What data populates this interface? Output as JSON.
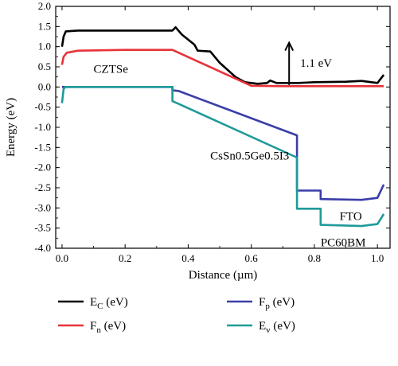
{
  "chart_data": {
    "type": "line",
    "xlabel": "Distance (µm)",
    "ylabel": "Energy (eV)",
    "xlim": [
      -0.02,
      1.04
    ],
    "ylim": [
      -4.0,
      2.0
    ],
    "xticks": [
      "0.0",
      "0.2",
      "0.4",
      "0.6",
      "0.8",
      "1.0"
    ],
    "xtick_values": [
      0.0,
      0.2,
      0.4,
      0.6,
      0.8,
      1.0
    ],
    "yticks": [
      "2.0",
      "1.5",
      "1.0",
      "0.5",
      "0.0",
      "-0.5",
      "-1.0",
      "-1.5",
      "-2.0",
      "-2.5",
      "-3.0",
      "-3.5",
      "-4.0"
    ],
    "ytick_values": [
      2.0,
      1.5,
      1.0,
      0.5,
      0.0,
      -0.5,
      -1.0,
      -1.5,
      -2.0,
      -2.5,
      -3.0,
      -3.5,
      -4.0
    ],
    "series": [
      {
        "name": "EC (eV)",
        "color": "#000000",
        "points": [
          [
            0.0,
            1.0
          ],
          [
            0.005,
            1.25
          ],
          [
            0.012,
            1.38
          ],
          [
            0.05,
            1.4
          ],
          [
            0.35,
            1.4
          ],
          [
            0.36,
            1.48
          ],
          [
            0.38,
            1.3
          ],
          [
            0.42,
            1.05
          ],
          [
            0.43,
            0.9
          ],
          [
            0.47,
            0.88
          ],
          [
            0.5,
            0.6
          ],
          [
            0.55,
            0.25
          ],
          [
            0.58,
            0.12
          ],
          [
            0.62,
            0.08
          ],
          [
            0.65,
            0.1
          ],
          [
            0.66,
            0.16
          ],
          [
            0.68,
            0.1
          ],
          [
            0.75,
            0.1
          ],
          [
            0.8,
            0.12
          ],
          [
            0.9,
            0.13
          ],
          [
            0.95,
            0.15
          ],
          [
            1.0,
            0.1
          ],
          [
            1.02,
            0.3
          ]
        ]
      },
      {
        "name": "Fn (eV)",
        "color": "#e8333a",
        "points": [
          [
            0.0,
            0.55
          ],
          [
            0.005,
            0.75
          ],
          [
            0.015,
            0.85
          ],
          [
            0.05,
            0.9
          ],
          [
            0.2,
            0.92
          ],
          [
            0.35,
            0.92
          ],
          [
            0.6,
            0.03
          ],
          [
            0.7,
            0.02
          ],
          [
            1.0,
            0.02
          ],
          [
            1.02,
            0.02
          ]
        ]
      },
      {
        "name": "Fp (eV)",
        "color": "#3a3ea8",
        "points": [
          [
            0.0,
            0.0
          ],
          [
            0.35,
            0.0
          ],
          [
            0.35,
            -0.08
          ],
          [
            0.37,
            -0.1
          ],
          [
            0.745,
            -1.2
          ],
          [
            0.745,
            -2.57
          ],
          [
            0.82,
            -2.57
          ],
          [
            0.82,
            -2.78
          ],
          [
            0.95,
            -2.8
          ],
          [
            1.0,
            -2.75
          ],
          [
            1.02,
            -2.42
          ]
        ]
      },
      {
        "name": "Ev (eV)",
        "color": "#1f9a9a",
        "points": [
          [
            0.0,
            -0.4
          ],
          [
            0.005,
            -0.05
          ],
          [
            0.01,
            0.0
          ],
          [
            0.35,
            0.0
          ],
          [
            0.35,
            -0.35
          ],
          [
            0.37,
            -0.42
          ],
          [
            0.745,
            -1.75
          ],
          [
            0.745,
            -3.02
          ],
          [
            0.82,
            -3.02
          ],
          [
            0.82,
            -3.42
          ],
          [
            0.95,
            -3.45
          ],
          [
            1.0,
            -3.4
          ],
          [
            1.02,
            -3.15
          ]
        ]
      }
    ],
    "annotations": [
      {
        "text": "CZTSe",
        "x": 0.1,
        "y": 0.45
      },
      {
        "text": "1.1 eV",
        "x": 0.755,
        "y": 0.6
      },
      {
        "text": "CsSn0.5Ge0.5I3",
        "x": 0.47,
        "y": -1.7
      },
      {
        "text": "FTO",
        "x": 0.88,
        "y": -3.2
      },
      {
        "text": "PC60BM",
        "x": 0.82,
        "y": -3.85
      }
    ],
    "arrow": {
      "x": 0.72,
      "y_from": 0.05,
      "y_to": 1.1
    },
    "legend_position": "bottom",
    "grid": false
  },
  "legend": {
    "items": [
      {
        "base": "E",
        "sub": "C",
        "unit": " (eV)",
        "color": "#000000"
      },
      {
        "base": "F",
        "sub": "p",
        "unit": " (eV)",
        "color": "#3a3ea8"
      },
      {
        "base": "F",
        "sub": "n",
        "unit": " (eV)",
        "color": "#e8333a"
      },
      {
        "base": "E",
        "sub": "v",
        "unit": " (eV)",
        "color": "#1f9a9a"
      }
    ]
  }
}
